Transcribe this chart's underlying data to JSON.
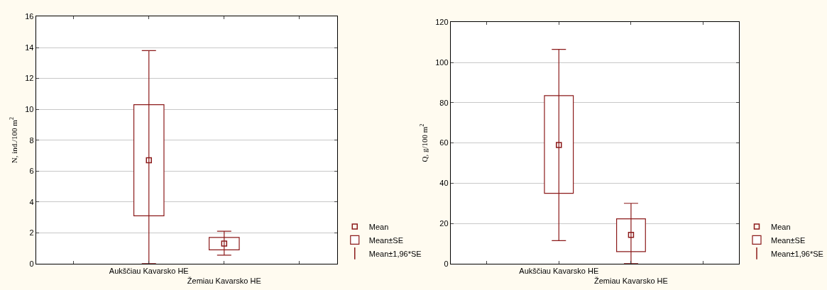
{
  "chart_data": [
    {
      "type": "bar",
      "ylabel": "N, ind./100 m$^{2}$",
      "categories": [
        null,
        "Aukščiau Kavarsko HE",
        "Žemiau Kavarsko HE",
        null
      ],
      "ylim": [
        0,
        16
      ],
      "yticks": [
        0,
        2,
        4,
        6,
        8,
        10,
        12,
        14,
        16
      ],
      "grid": "y",
      "legend": "bottom right",
      "series": [
        {
          "name": "Mean",
          "type": "scatter",
          "marker": "square",
          "color": "#8b1a1a",
          "values": [
            null,
            6.7,
            1.3,
            null
          ],
          "errors": [
            null,
            [
              0,
              13.8
            ],
            [
              0.55,
              2.1
            ],
            null
          ]
        },
        {
          "name": "Mean±SE",
          "type": "bar",
          "color": "#8b1a1a",
          "base": [
            null,
            3.1,
            0.9,
            null
          ],
          "values": [
            null,
            7.2,
            0.8,
            null
          ]
        },
        {
          "name": "Mean±1,96*SE",
          "type": "scatter",
          "marker": "none",
          "color": "#8b1a1a",
          "values": [
            null,
            null,
            null,
            null
          ]
        }
      ]
    },
    {
      "type": "bar",
      "ylabel": "Q, g/100 m$^{2}$",
      "categories": [
        null,
        "Aukščiau Kavarsko HE",
        "Žemiau Kavarsko HE",
        null
      ],
      "ylim": [
        0,
        120
      ],
      "yticks": [
        0,
        20,
        40,
        60,
        80,
        100,
        120
      ],
      "grid": "y",
      "legend": "bottom right",
      "series": [
        {
          "name": "Mean",
          "type": "scatter",
          "marker": "square",
          "color": "#8b1a1a",
          "values": [
            null,
            59,
            14.3,
            null
          ],
          "errors": [
            null,
            [
              11.5,
              106.5
            ],
            [
              0,
              30
            ],
            null
          ]
        },
        {
          "name": "Mean±SE",
          "type": "bar",
          "color": "#8b1a1a",
          "base": [
            null,
            35,
            6,
            null
          ],
          "values": [
            null,
            48.5,
            16.3,
            null
          ]
        },
        {
          "name": "Mean±1,96*SE",
          "type": "scatter",
          "marker": "none",
          "color": "#8b1a1a",
          "values": [
            null,
            null,
            null,
            null
          ]
        }
      ]
    }
  ]
}
